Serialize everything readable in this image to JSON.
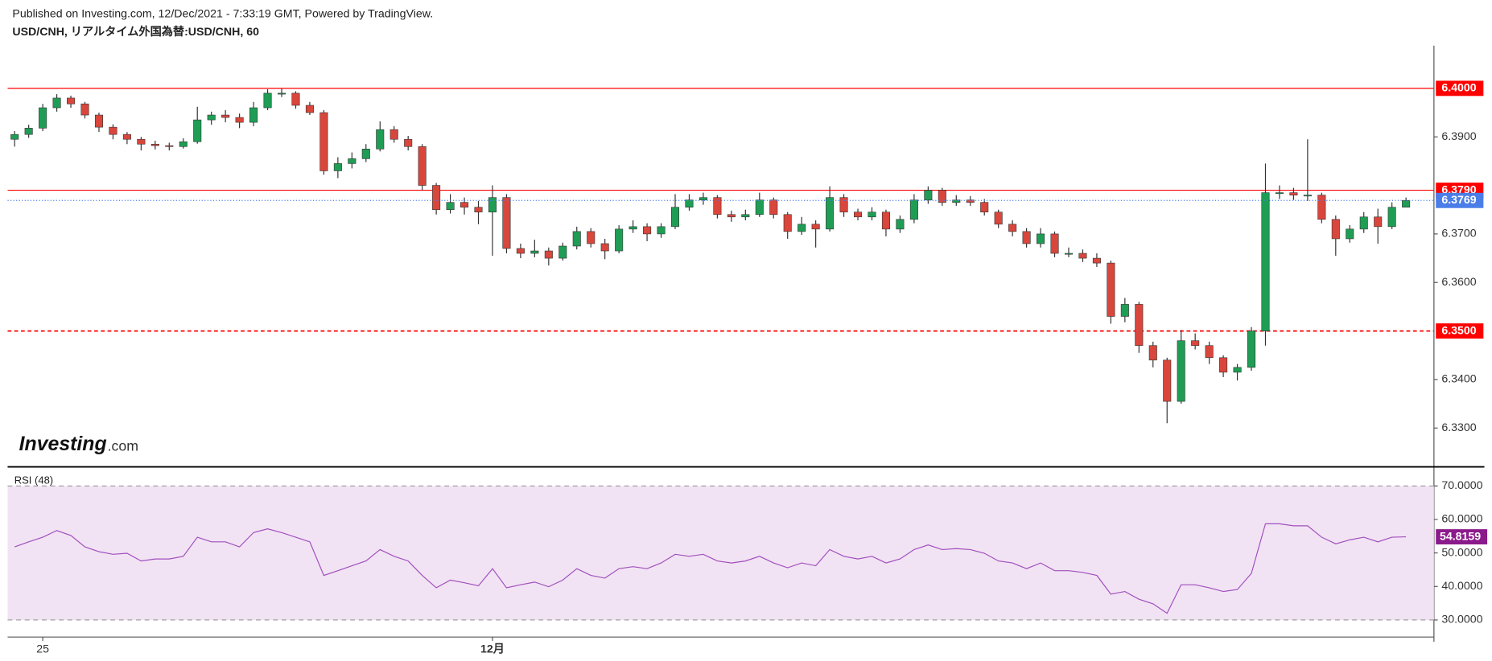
{
  "header": {
    "published": "Published on Investing.com, 12/Dec/2021 - 7:33:19 GMT, Powered by TradingView.",
    "symbol": "USD/CNH, リアルタイム外国為替:USD/CNH, 60"
  },
  "logo": {
    "brand": "Investing",
    "suffix": ".com"
  },
  "chart_data": {
    "type": "candlestick",
    "up_color": "#1f9d55",
    "down_color": "#d9463c",
    "wick_color": "#333333",
    "categories": [
      null,
      null,
      "25",
      null,
      null,
      null,
      null,
      null,
      null,
      null,
      null,
      null,
      null,
      null,
      null,
      null,
      null,
      null,
      null,
      null,
      null,
      null,
      null,
      null,
      null,
      null,
      null,
      null,
      null,
      null,
      null,
      null,
      null,
      null,
      "12月",
      null,
      null,
      null,
      null,
      null,
      null,
      null,
      null,
      null,
      null,
      null,
      null,
      null,
      null,
      null,
      null,
      null,
      null,
      null,
      null,
      null,
      null,
      null,
      null,
      null,
      null,
      null,
      null,
      null,
      null,
      null,
      null,
      null,
      null,
      null,
      null,
      null,
      null,
      null,
      null,
      null,
      null,
      null,
      null,
      null,
      null,
      null,
      null,
      null,
      null,
      null,
      null,
      null,
      null,
      null,
      null,
      null,
      null,
      null,
      null,
      null,
      null,
      null,
      null,
      null
    ],
    "open": [
      6.3895,
      6.3905,
      6.3918,
      6.396,
      6.398,
      6.3968,
      6.3945,
      6.392,
      6.3905,
      6.3895,
      6.3885,
      6.3882,
      6.388,
      6.389,
      6.3935,
      6.3945,
      6.394,
      6.393,
      6.396,
      6.399,
      6.399,
      6.3965,
      6.395,
      6.383,
      6.3845,
      6.3855,
      6.3875,
      6.3915,
      6.3895,
      6.388,
      6.38,
      6.375,
      6.3765,
      6.3755,
      6.3745,
      6.3775,
      6.367,
      6.366,
      6.3665,
      6.365,
      6.3675,
      6.3705,
      6.368,
      6.3665,
      6.371,
      6.3715,
      6.37,
      6.3715,
      6.3755,
      6.377,
      6.3775,
      6.374,
      6.3735,
      6.374,
      6.377,
      6.374,
      6.3705,
      6.372,
      6.371,
      6.3775,
      6.3745,
      6.3735,
      6.3745,
      6.371,
      6.373,
      6.377,
      6.379,
      6.3765,
      6.377,
      6.3765,
      6.3745,
      6.372,
      6.3705,
      6.368,
      6.37,
      6.366,
      6.366,
      6.365,
      6.364,
      6.353,
      6.3555,
      6.347,
      6.344,
      6.3355,
      6.348,
      6.347,
      6.3445,
      6.3415,
      6.3425,
      6.35,
      6.3785,
      6.3785,
      6.378,
      6.378,
      6.373,
      6.369,
      6.371,
      6.3735,
      6.3715,
      6.3755
    ],
    "high": [
      6.3912,
      6.3925,
      6.3968,
      6.3988,
      6.3985,
      6.3972,
      6.395,
      6.3926,
      6.391,
      6.39,
      6.3892,
      6.3888,
      6.3897,
      6.3962,
      6.3952,
      6.3955,
      6.3948,
      6.3972,
      6.3998,
      6.3999,
      6.3994,
      6.3972,
      6.3955,
      6.3858,
      6.3868,
      6.3885,
      6.3932,
      6.3922,
      6.3902,
      6.3885,
      6.3805,
      6.3782,
      6.3775,
      6.3768,
      6.38,
      6.3782,
      6.368,
      6.3688,
      6.3672,
      6.3682,
      6.3715,
      6.3712,
      6.369,
      6.3718,
      6.3728,
      6.3722,
      6.3722,
      6.3782,
      6.3782,
      6.3785,
      6.378,
      6.3748,
      6.375,
      6.3785,
      6.3775,
      6.3745,
      6.3735,
      6.3728,
      6.3798,
      6.3782,
      6.3752,
      6.3755,
      6.375,
      6.3738,
      6.3782,
      6.3798,
      6.3795,
      6.378,
      6.3778,
      6.3772,
      6.375,
      6.3728,
      6.3712,
      6.3712,
      6.3705,
      6.3672,
      6.3668,
      6.366,
      6.3645,
      6.3568,
      6.356,
      6.3478,
      6.3445,
      6.3502,
      6.3495,
      6.3478,
      6.345,
      6.3432,
      6.3508,
      6.3845,
      6.38,
      6.3795,
      6.3895,
      6.3785,
      6.3738,
      6.3718,
      6.3745,
      6.3752,
      6.3765,
      6.3775
    ],
    "low": [
      6.388,
      6.3898,
      6.3912,
      6.3952,
      6.396,
      6.3938,
      6.391,
      6.3895,
      6.3885,
      6.3872,
      6.3874,
      6.3872,
      6.3876,
      6.3886,
      6.3925,
      6.393,
      6.3918,
      6.3922,
      6.3955,
      6.3982,
      6.3958,
      6.3945,
      6.3822,
      6.3815,
      6.3835,
      6.3848,
      6.387,
      6.3888,
      6.3872,
      6.379,
      6.374,
      6.3742,
      6.374,
      6.372,
      6.3655,
      6.366,
      6.365,
      6.3652,
      6.3635,
      6.3645,
      6.3668,
      6.3672,
      6.3648,
      6.366,
      6.3702,
      6.3685,
      6.3692,
      6.371,
      6.3748,
      6.376,
      6.3732,
      6.3725,
      6.3728,
      6.3735,
      6.3732,
      6.369,
      6.3698,
      6.3672,
      6.3705,
      6.3735,
      6.3728,
      6.3728,
      6.3695,
      6.3702,
      6.3722,
      6.3762,
      6.3758,
      6.3758,
      6.3758,
      6.3738,
      6.3712,
      6.3695,
      6.3672,
      6.3672,
      6.3652,
      6.3652,
      6.3642,
      6.3632,
      6.3515,
      6.3518,
      6.3455,
      6.3425,
      6.331,
      6.335,
      6.3462,
      6.3432,
      6.3405,
      6.3398,
      6.3418,
      6.347,
      6.3772,
      6.377,
      6.3768,
      6.3722,
      6.3655,
      6.3682,
      6.3702,
      6.368,
      6.371,
      6.376
    ],
    "close": [
      6.3905,
      6.3918,
      6.396,
      6.398,
      6.3968,
      6.3945,
      6.392,
      6.3905,
      6.3895,
      6.3885,
      6.3882,
      6.388,
      6.389,
      6.3935,
      6.3945,
      6.394,
      6.393,
      6.396,
      6.399,
      6.399,
      6.3965,
      6.395,
      6.383,
      6.3845,
      6.3855,
      6.3875,
      6.3915,
      6.3895,
      6.388,
      6.38,
      6.375,
      6.3765,
      6.3755,
      6.3745,
      6.3775,
      6.367,
      6.366,
      6.3665,
      6.365,
      6.3675,
      6.3705,
      6.368,
      6.3665,
      6.371,
      6.3715,
      6.37,
      6.3715,
      6.3755,
      6.377,
      6.3775,
      6.374,
      6.3735,
      6.374,
      6.377,
      6.374,
      6.3705,
      6.372,
      6.371,
      6.3775,
      6.3745,
      6.3735,
      6.3745,
      6.371,
      6.373,
      6.377,
      6.379,
      6.3765,
      6.377,
      6.3765,
      6.3745,
      6.372,
      6.3705,
      6.368,
      6.37,
      6.366,
      6.366,
      6.365,
      6.364,
      6.353,
      6.3555,
      6.347,
      6.344,
      6.3355,
      6.348,
      6.347,
      6.3445,
      6.3415,
      6.3425,
      6.35,
      6.3785,
      6.3785,
      6.378,
      6.378,
      6.373,
      6.369,
      6.371,
      6.3735,
      6.3715,
      6.3755,
      6.3769
    ],
    "ylim": [
      6.3222,
      6.4088
    ],
    "yticks": [
      {
        "value": 6.33,
        "label": "6.3300"
      },
      {
        "value": 6.34,
        "label": "6.3400"
      },
      {
        "value": 6.36,
        "label": "6.3600"
      },
      {
        "value": 6.37,
        "label": "6.3700"
      },
      {
        "value": 6.39,
        "label": "6.3900"
      }
    ],
    "hlines": [
      {
        "value": 6.4,
        "label": "6.4000",
        "color": "#ff0000",
        "style": "solid"
      },
      {
        "value": 6.379,
        "label": "6.3790",
        "color": "#ff0000",
        "style": "solid"
      },
      {
        "value": 6.35,
        "label": "6.3500",
        "color": "#ff0000",
        "style": "dashed"
      }
    ],
    "last_price_color": "#4a7de8",
    "rsi": {
      "name": "RSI (48)",
      "color": "#a14fbf",
      "band": [
        30,
        70
      ],
      "band_color": "#f1e3f3",
      "ylim": [
        24.9,
        74
      ],
      "yticks": [
        {
          "value": 30,
          "label": "30.0000"
        },
        {
          "value": 40,
          "label": "40.0000"
        },
        {
          "value": 50,
          "label": "50.0000"
        },
        {
          "value": 60,
          "label": "60.0000"
        },
        {
          "value": 70,
          "label": "70.0000"
        }
      ],
      "last_color": "#8b1a8b",
      "values": [
        51.8,
        53.3,
        54.7,
        56.7,
        55.2,
        51.8,
        50.4,
        49.6,
        49.9,
        47.6,
        48.2,
        48.2,
        49.0,
        54.7,
        53.3,
        53.3,
        51.8,
        56.1,
        57.2,
        56.1,
        54.7,
        53.3,
        43.3,
        44.7,
        46.2,
        47.6,
        51.0,
        49.0,
        47.6,
        43.3,
        39.6,
        41.9,
        41.1,
        40.2,
        45.3,
        39.6,
        40.5,
        41.3,
        39.9,
        41.9,
        45.3,
        43.3,
        42.5,
        45.3,
        45.9,
        45.3,
        47.0,
        49.6,
        49.0,
        49.6,
        47.6,
        47.0,
        47.6,
        49.0,
        47.0,
        45.6,
        47.0,
        46.2,
        51.0,
        49.0,
        48.2,
        49.0,
        47.0,
        48.2,
        51.0,
        52.4,
        51.0,
        51.3,
        51.0,
        49.9,
        47.6,
        47.0,
        45.3,
        47.0,
        44.7,
        44.7,
        44.2,
        43.3,
        37.7,
        38.5,
        36.2,
        34.8,
        32.0,
        40.5,
        40.5,
        39.6,
        38.5,
        39.1,
        43.9,
        58.7,
        58.7,
        58.1,
        58.1,
        54.7,
        52.7,
        53.9,
        54.7,
        53.3,
        54.7,
        54.8159
      ]
    }
  }
}
